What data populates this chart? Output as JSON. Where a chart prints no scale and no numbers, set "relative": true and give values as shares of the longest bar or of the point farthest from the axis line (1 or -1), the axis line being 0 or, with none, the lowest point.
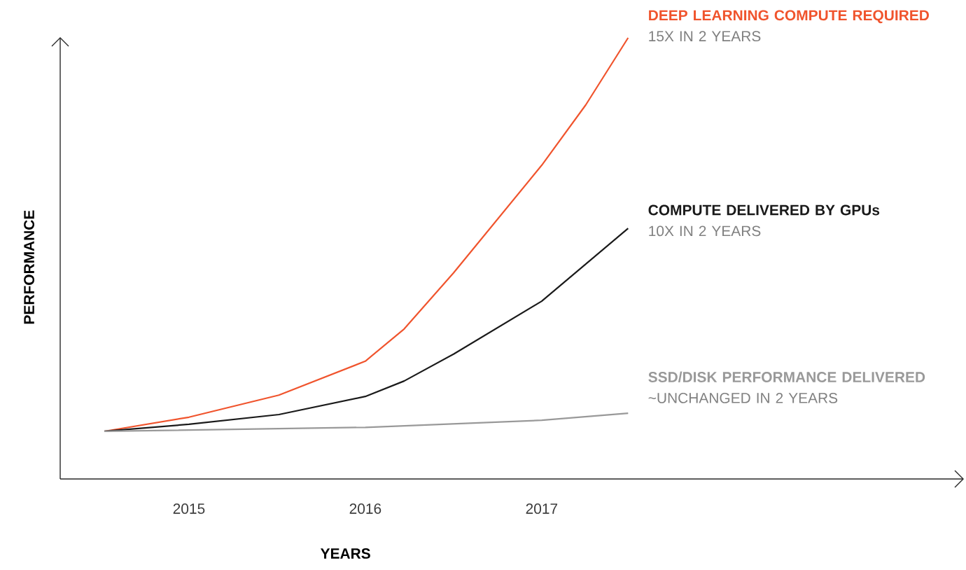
{
  "chart_data": {
    "type": "line",
    "relative": true,
    "xlabel": "YEARS",
    "ylabel": "PERFORMANCE",
    "xlim": [
      2014.27,
      2019.39
    ],
    "xticks": [
      2015,
      2016,
      2017
    ],
    "grid": false,
    "legend": false,
    "marker": "none",
    "line_style": "solid",
    "series": [
      {
        "name": "DEEP LEARNING COMPUTE REQUIRED",
        "color": "#f0542d",
        "x": [
          2014.52,
          2015,
          2015.51,
          2016,
          2016.22,
          2016.5,
          2017,
          2017.25,
          2017.49
        ],
        "values": [
          0.108,
          0.14,
          0.19,
          0.267,
          0.34,
          0.467,
          0.711,
          0.848,
          1
        ]
      },
      {
        "name": "COMPUTE DELIVERED BY GPUs",
        "color": "#1a1a1a",
        "x": [
          2014.52,
          2015,
          2015.51,
          2016,
          2016.22,
          2016.5,
          2017,
          2017.49
        ],
        "values": [
          0.108,
          0.124,
          0.146,
          0.187,
          0.222,
          0.283,
          0.403,
          0.568
        ]
      },
      {
        "name": "SSD/DISK PERFORMANCE DELIVERED",
        "color": "#999999",
        "x": [
          2014.52,
          2016,
          2017,
          2017.49
        ],
        "values": [
          0.108,
          0.117,
          0.133,
          0.149
        ]
      }
    ],
    "annotations": [
      "15X IN 2 YEARS",
      "10X IN 2 YEARS",
      "~UNCHANGED IN 2 YEARS"
    ]
  }
}
